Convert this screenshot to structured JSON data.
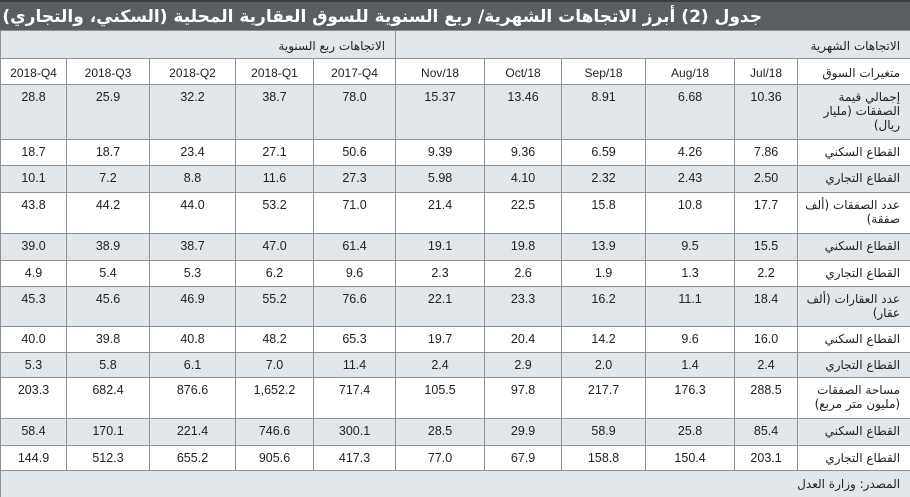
{
  "title": "جدول (2) أبرز الاتجاهات الشهرية/ ربع السنوية للسوق العقارية المحلية (السكني، والتجاري)",
  "sections": {
    "monthly": "الاتجاهات الشهرية",
    "quarterly": "الاتجاهات ربع السنوية"
  },
  "columns": {
    "label": "متغيرات السوق",
    "monthly": [
      "Jul/18",
      "Aug/18",
      "Sep/18",
      "Oct/18",
      "Nov/18"
    ],
    "quarterly": [
      "2017-Q4",
      "2018-Q1",
      "2018-Q2",
      "2018-Q3",
      "2018-Q4"
    ]
  },
  "rows": [
    {
      "label": "إجمالي قيمة الصفقات (مليار ريال)",
      "monthly": [
        "10.36",
        "6.68",
        "8.91",
        "13.46",
        "15.37"
      ],
      "quarterly": [
        "78.0",
        "38.7",
        "32.2",
        "25.9",
        "28.8"
      ]
    },
    {
      "label": "القطاع السكني",
      "monthly": [
        "7.86",
        "4.26",
        "6.59",
        "9.36",
        "9.39"
      ],
      "quarterly": [
        "50.6",
        "27.1",
        "23.4",
        "18.7",
        "18.7"
      ]
    },
    {
      "label": "القطاع التجاري",
      "monthly": [
        "2.50",
        "2.43",
        "2.32",
        "4.10",
        "5.98"
      ],
      "quarterly": [
        "27.3",
        "11.6",
        "8.8",
        "7.2",
        "10.1"
      ]
    },
    {
      "label": "عدد الصفقات (ألف صفقة)",
      "monthly": [
        "17.7",
        "10.8",
        "15.8",
        "22.5",
        "21.4"
      ],
      "quarterly": [
        "71.0",
        "53.2",
        "44.0",
        "44.2",
        "43.8"
      ]
    },
    {
      "label": "القطاع السكني",
      "monthly": [
        "15.5",
        "9.5",
        "13.9",
        "19.8",
        "19.1"
      ],
      "quarterly": [
        "61.4",
        "47.0",
        "38.7",
        "38.9",
        "39.0"
      ]
    },
    {
      "label": "القطاع التجاري",
      "monthly": [
        "2.2",
        "1.3",
        "1.9",
        "2.6",
        "2.3"
      ],
      "quarterly": [
        "9.6",
        "6.2",
        "5.3",
        "5.4",
        "4.9"
      ]
    },
    {
      "label": "عدد العقارات (ألف عقار)",
      "monthly": [
        "18.4",
        "11.1",
        "16.2",
        "23.3",
        "22.1"
      ],
      "quarterly": [
        "76.6",
        "55.2",
        "46.9",
        "45.6",
        "45.3"
      ]
    },
    {
      "label": "القطاع السكني",
      "monthly": [
        "16.0",
        "9.6",
        "14.2",
        "20.4",
        "19.7"
      ],
      "quarterly": [
        "65.3",
        "48.2",
        "40.8",
        "39.8",
        "40.0"
      ]
    },
    {
      "label": "القطاع التجاري",
      "monthly": [
        "2.4",
        "1.4",
        "2.0",
        "2.9",
        "2.4"
      ],
      "quarterly": [
        "11.4",
        "7.0",
        "6.1",
        "5.8",
        "5.3"
      ]
    },
    {
      "label": "مساحة الصفقات (مليون متر مربع)",
      "monthly": [
        "288.5",
        "176.3",
        "217.7",
        "97.8",
        "105.5"
      ],
      "quarterly": [
        "717.4",
        "1,652.2",
        "876.6",
        "682.4",
        "203.3"
      ]
    },
    {
      "label": "القطاع السكني",
      "monthly": [
        "85.4",
        "25.8",
        "58.9",
        "29.9",
        "28.5"
      ],
      "quarterly": [
        "300.1",
        "746.6",
        "221.4",
        "170.1",
        "58.4"
      ]
    },
    {
      "label": "القطاع التجاري",
      "monthly": [
        "203.1",
        "150.4",
        "158.8",
        "67.9",
        "77.0"
      ],
      "quarterly": [
        "417.3",
        "905.6",
        "655.2",
        "512.3",
        "144.9"
      ]
    }
  ],
  "source": "المصدر: وزارة العدل",
  "colors": {
    "title_bg": "#5b5e61",
    "shaded_row": "#e1e6ea",
    "border": "#8e9092"
  }
}
